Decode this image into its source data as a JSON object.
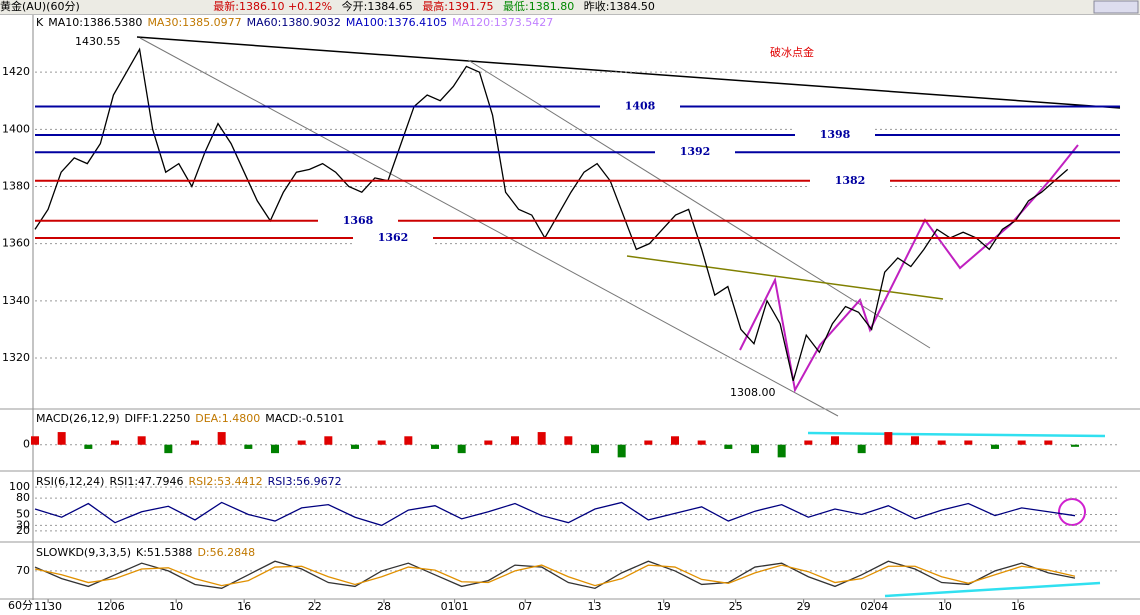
{
  "header": {
    "symbol": "黄金(AU)(60分)",
    "items": [
      "最新:1386.10 +0.12%",
      "今开:1384.65",
      "最高:1391.75",
      "最低:1381.80",
      "昨收:1384.50"
    ],
    "footer_label": "60分"
  },
  "chart_data": [
    {
      "type": "line",
      "title": "破冰点金",
      "color": "#000000",
      "legend": [
        {
          "text": "K",
          "color": "#000000"
        },
        {
          "text": "MA10:1386.5380",
          "color": "#000000"
        },
        {
          "text": "MA30:1385.0977",
          "color": "#c07800"
        },
        {
          "text": "MA60:1380.9032",
          "color": "#000080"
        },
        {
          "text": "MA100:1376.4105",
          "color": "#0000c0"
        },
        {
          "text": "MA120:1373.5427",
          "color": "#c080ff"
        }
      ],
      "values": [
        1365,
        1372,
        1385,
        1390,
        1388,
        1395,
        1412,
        1420,
        1428,
        1400,
        1385,
        1388,
        1380,
        1392,
        1402,
        1395,
        1385,
        1375,
        1368,
        1378,
        1385,
        1386,
        1388,
        1385,
        1380,
        1378,
        1383,
        1382,
        1395,
        1408,
        1412,
        1410,
        1415,
        1422,
        1420,
        1405,
        1378,
        1372,
        1370,
        1362,
        1370,
        1378,
        1385,
        1388,
        1382,
        1370,
        1358,
        1360,
        1365,
        1370,
        1372,
        1358,
        1342,
        1345,
        1330,
        1325,
        1340,
        1332,
        1312,
        1328,
        1322,
        1332,
        1338,
        1336,
        1330,
        1350,
        1355,
        1352,
        1358,
        1365,
        1362,
        1364,
        1362,
        1358,
        1365,
        1368,
        1375,
        1378,
        1382,
        1386
      ],
      "levels": [
        {
          "value": 1408,
          "color": "#0000a0"
        },
        {
          "value": 1398,
          "color": "#0000a0"
        },
        {
          "value": 1392,
          "color": "#0000a0"
        },
        {
          "value": 1382,
          "color": "#cc0000"
        },
        {
          "value": 1368,
          "color": "#cc0000"
        },
        {
          "value": 1362,
          "color": "#cc0000"
        }
      ],
      "annotations": [
        "1430.55",
        "1308.00"
      ],
      "ylim": [
        1302.5,
        1440
      ],
      "yticks": [
        1320,
        1340,
        1360,
        1380,
        1400,
        1420
      ],
      "xlim": [
        0,
        83
      ],
      "xticks": [
        {
          "value": 1.0,
          "label": "1130"
        },
        {
          "value": 5.8,
          "label": "1206"
        },
        {
          "value": 10.8,
          "label": "10"
        },
        {
          "value": 16,
          "label": "16"
        },
        {
          "value": 21.4,
          "label": "22"
        },
        {
          "value": 26.7,
          "label": "28"
        },
        {
          "value": 32.1,
          "label": "0101"
        },
        {
          "value": 37.5,
          "label": "07"
        },
        {
          "value": 42.8,
          "label": "13"
        },
        {
          "value": 48.1,
          "label": "19"
        },
        {
          "value": 53.6,
          "label": "25"
        },
        {
          "value": 58.8,
          "label": "29"
        },
        {
          "value": 64.2,
          "label": "0204"
        },
        {
          "value": 69.6,
          "label": "10"
        },
        {
          "value": 75.2,
          "label": "16"
        }
      ],
      "grid": true
    },
    {
      "type": "histogram-bar",
      "legend": [
        {
          "text": "MACD(26,12,9)",
          "color": "#000000"
        },
        {
          "text": "DIFF:1.2250",
          "color": "#000000"
        },
        {
          "text": "DEA:1.4800",
          "color": "#c07800"
        },
        {
          "text": "MACD:-0.5101",
          "color": "#000000"
        }
      ],
      "up_color": "#e00000",
      "down_color": "#008000",
      "values": [
        2,
        3,
        -1,
        1,
        2,
        -2,
        1,
        3,
        -1,
        -2,
        1,
        2,
        -1,
        1,
        2,
        -1,
        -2,
        1,
        2,
        3,
        2,
        -2,
        -3,
        1,
        2,
        1,
        -1,
        -2,
        -3,
        1,
        2,
        -2,
        3,
        2,
        1,
        1,
        -1,
        1,
        1,
        -0.5
      ],
      "ylim": [
        -6,
        8
      ],
      "yticks": [
        0
      ],
      "grid": true
    },
    {
      "type": "line",
      "legend": [
        {
          "text": "RSI(6,12,24)",
          "color": "#000000"
        },
        {
          "text": "RSI1:47.7946",
          "color": "#000000"
        },
        {
          "text": "RSI2:53.4412",
          "color": "#c07800"
        },
        {
          "text": "RSI3:56.9672",
          "color": "#000080"
        }
      ],
      "color": "#000080",
      "values": [
        60,
        45,
        70,
        35,
        55,
        65,
        40,
        72,
        50,
        38,
        62,
        68,
        45,
        30,
        58,
        66,
        42,
        55,
        70,
        48,
        35,
        60,
        72,
        40,
        52,
        64,
        38,
        56,
        68,
        45,
        60,
        50,
        66,
        42,
        58,
        70,
        48,
        62,
        55,
        47.8
      ],
      "ylim": [
        1.5,
        124
      ],
      "yticks": [
        20,
        30,
        50,
        80,
        100
      ],
      "grid": true
    },
    {
      "type": "line",
      "legend": [
        {
          "text": "SLOWKD(9,3,3,5)",
          "color": "#000000"
        },
        {
          "text": "K:51.5388",
          "color": "#000000"
        },
        {
          "text": "D:56.2848",
          "color": "#c07800"
        }
      ],
      "series": [
        {
          "color": "#333333",
          "values": [
            80,
            50,
            30,
            60,
            90,
            70,
            35,
            25,
            60,
            95,
            75,
            40,
            30,
            70,
            90,
            60,
            30,
            45,
            85,
            80,
            40,
            25,
            65,
            95,
            70,
            35,
            40,
            80,
            90,
            55,
            30,
            60,
            95,
            75,
            40,
            35,
            70,
            90,
            65,
            51.5
          ]
        },
        {
          "color": "#e09000",
          "values": [
            75,
            60,
            40,
            50,
            75,
            78,
            50,
            32,
            45,
            80,
            82,
            55,
            35,
            55,
            80,
            72,
            42,
            40,
            70,
            85,
            55,
            32,
            50,
            85,
            80,
            48,
            38,
            65,
            85,
            68,
            40,
            50,
            82,
            82,
            55,
            38,
            60,
            82,
            72,
            56.3
          ]
        }
      ],
      "ylim": [
        0,
        137
      ],
      "yticks": [
        70
      ],
      "grid": true
    }
  ]
}
